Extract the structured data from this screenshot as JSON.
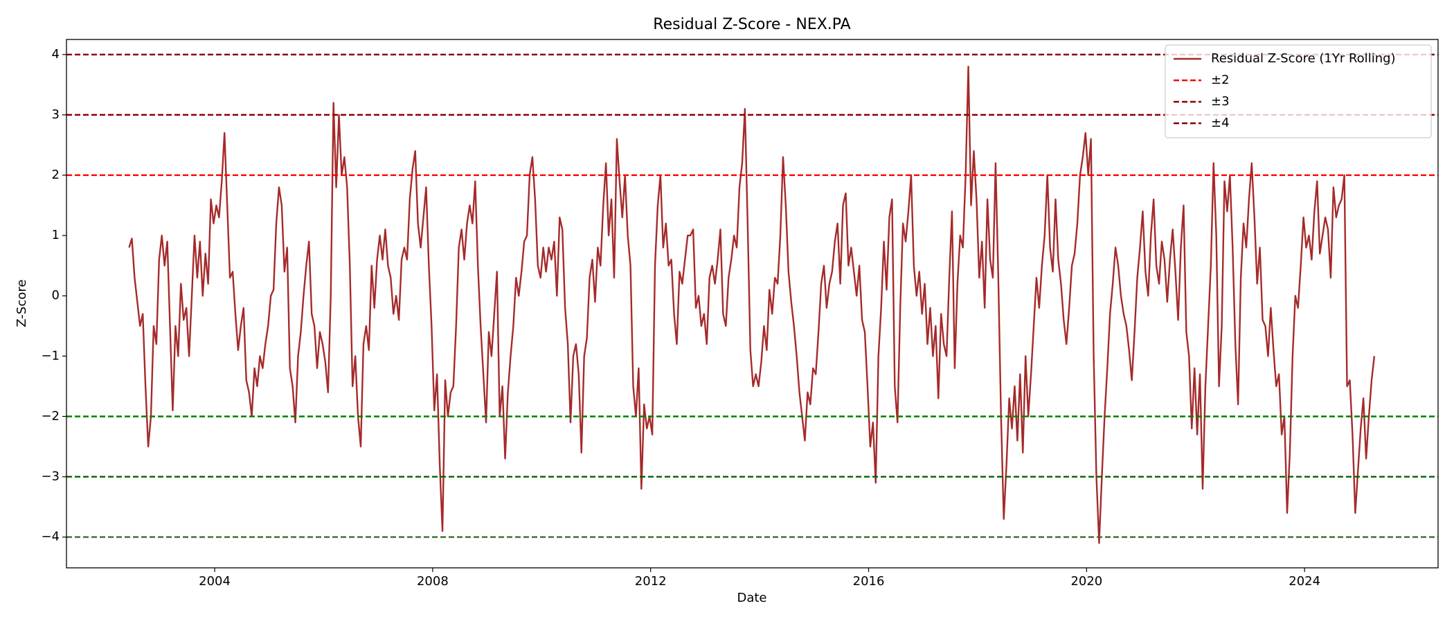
{
  "chart_data": {
    "type": "line",
    "title": "Residual Z-Score - NEX.PA",
    "xlabel": "Date",
    "ylabel": "Z-Score",
    "xlim": [
      2001.28,
      2026.45
    ],
    "ylim": [
      -4.51,
      4.25
    ],
    "xticks": [
      2004,
      2008,
      2012,
      2016,
      2020,
      2024
    ],
    "yticks": [
      {
        "value": -4,
        "label": "−4"
      },
      {
        "value": -3,
        "label": "−3"
      },
      {
        "value": -2,
        "label": "−2"
      },
      {
        "value": -1,
        "label": "−1"
      },
      0,
      1,
      2,
      3,
      4
    ],
    "legend": "upper right",
    "series": [
      {
        "name": "Residual Z-Score (1Yr Rolling)",
        "color": "#a52a2a",
        "x": [
          2002.43,
          2002.48,
          2002.53,
          2002.58,
          2002.63,
          2002.68,
          2002.73,
          2002.78,
          2002.83,
          2002.88,
          2002.93,
          2002.98,
          2003.03,
          2003.08,
          2003.13,
          2003.18,
          2003.23,
          2003.28,
          2003.33,
          2003.38,
          2003.43,
          2003.48,
          2003.53,
          2003.58,
          2003.63,
          2003.68,
          2003.73,
          2003.78,
          2003.83,
          2003.88,
          2003.93,
          2003.98,
          2004.03,
          2004.08,
          2004.13,
          2004.18,
          2004.23,
          2004.28,
          2004.33,
          2004.38,
          2004.43,
          2004.48,
          2004.53,
          2004.58,
          2004.63,
          2004.68,
          2004.73,
          2004.78,
          2004.83,
          2004.88,
          2004.93,
          2004.98,
          2005.03,
          2005.08,
          2005.13,
          2005.18,
          2005.23,
          2005.28,
          2005.33,
          2005.38,
          2005.43,
          2005.48,
          2005.53,
          2005.58,
          2005.63,
          2005.68,
          2005.73,
          2005.78,
          2005.83,
          2005.88,
          2005.93,
          2005.98,
          2006.03,
          2006.08,
          2006.13,
          2006.18,
          2006.23,
          2006.28,
          2006.33,
          2006.38,
          2006.43,
          2006.48,
          2006.53,
          2006.58,
          2006.63,
          2006.68,
          2006.73,
          2006.78,
          2006.83,
          2006.88,
          2006.93,
          2006.98,
          2007.03,
          2007.08,
          2007.13,
          2007.18,
          2007.23,
          2007.28,
          2007.33,
          2007.38,
          2007.43,
          2007.48,
          2007.53,
          2007.58,
          2007.63,
          2007.68,
          2007.73,
          2007.78,
          2007.83,
          2007.88,
          2007.93,
          2007.98,
          2008.03,
          2008.08,
          2008.13,
          2008.18,
          2008.23,
          2008.28,
          2008.33,
          2008.38,
          2008.43,
          2008.48,
          2008.53,
          2008.58,
          2008.63,
          2008.68,
          2008.73,
          2008.78,
          2008.83,
          2008.88,
          2008.93,
          2008.98,
          2009.03,
          2009.08,
          2009.13,
          2009.18,
          2009.23,
          2009.28,
          2009.33,
          2009.38,
          2009.43,
          2009.48,
          2009.53,
          2009.58,
          2009.63,
          2009.68,
          2009.73,
          2009.78,
          2009.83,
          2009.88,
          2009.93,
          2009.98,
          2010.03,
          2010.08,
          2010.13,
          2010.18,
          2010.23,
          2010.28,
          2010.33,
          2010.38,
          2010.43,
          2010.48,
          2010.53,
          2010.58,
          2010.63,
          2010.68,
          2010.73,
          2010.78,
          2010.83,
          2010.88,
          2010.93,
          2010.98,
          2011.03,
          2011.08,
          2011.13,
          2011.18,
          2011.23,
          2011.28,
          2011.33,
          2011.38,
          2011.43,
          2011.48,
          2011.53,
          2011.58,
          2011.63,
          2011.68,
          2011.73,
          2011.78,
          2011.83,
          2011.88,
          2011.93,
          2011.98,
          2012.03,
          2012.08,
          2012.13,
          2012.18,
          2012.23,
          2012.28,
          2012.33,
          2012.38,
          2012.43,
          2012.48,
          2012.53,
          2012.58,
          2012.63,
          2012.68,
          2012.73,
          2012.78,
          2012.83,
          2012.88,
          2012.93,
          2012.98,
          2013.03,
          2013.08,
          2013.13,
          2013.18,
          2013.23,
          2013.28,
          2013.33,
          2013.38,
          2013.43,
          2013.48,
          2013.53,
          2013.58,
          2013.63,
          2013.68,
          2013.73,
          2013.78,
          2013.83,
          2013.88,
          2013.93,
          2013.98,
          2014.03,
          2014.08,
          2014.13,
          2014.18,
          2014.23,
          2014.28,
          2014.33,
          2014.38,
          2014.43,
          2014.48,
          2014.53,
          2014.58,
          2014.63,
          2014.68,
          2014.73,
          2014.78,
          2014.83,
          2014.88,
          2014.93,
          2014.98,
          2015.03,
          2015.08,
          2015.13,
          2015.18,
          2015.23,
          2015.28,
          2015.33,
          2015.38,
          2015.43,
          2015.48,
          2015.53,
          2015.58,
          2015.63,
          2015.68,
          2015.73,
          2015.78,
          2015.83,
          2015.88,
          2015.93,
          2015.98,
          2016.03,
          2016.08,
          2016.13,
          2016.18,
          2016.23,
          2016.28,
          2016.33,
          2016.38,
          2016.43,
          2016.48,
          2016.53,
          2016.58,
          2016.63,
          2016.68,
          2016.73,
          2016.78,
          2016.83,
          2016.88,
          2016.93,
          2016.98,
          2017.03,
          2017.08,
          2017.13,
          2017.18,
          2017.23,
          2017.28,
          2017.33,
          2017.38,
          2017.43,
          2017.48,
          2017.53,
          2017.58,
          2017.63,
          2017.68,
          2017.73,
          2017.78,
          2017.83,
          2017.88,
          2017.93,
          2017.98,
          2018.03,
          2018.08,
          2018.13,
          2018.18,
          2018.23,
          2018.28,
          2018.33,
          2018.38,
          2018.43,
          2018.48,
          2018.53,
          2018.58,
          2018.63,
          2018.68,
          2018.73,
          2018.78,
          2018.83,
          2018.88,
          2018.93,
          2018.98,
          2019.03,
          2019.08,
          2019.13,
          2019.18,
          2019.23,
          2019.28,
          2019.33,
          2019.38,
          2019.43,
          2019.48,
          2019.53,
          2019.58,
          2019.63,
          2019.68,
          2019.73,
          2019.78,
          2019.83,
          2019.88,
          2019.93,
          2019.98,
          2020.03,
          2020.08,
          2020.13,
          2020.18,
          2020.23,
          2020.28,
          2020.33,
          2020.38,
          2020.43,
          2020.48,
          2020.53,
          2020.58,
          2020.63,
          2020.68,
          2020.73,
          2020.78,
          2020.83,
          2020.88,
          2020.93,
          2020.98,
          2021.03,
          2021.08,
          2021.13,
          2021.18,
          2021.23,
          2021.28,
          2021.33,
          2021.38,
          2021.43,
          2021.48,
          2021.53,
          2021.58,
          2021.63,
          2021.68,
          2021.73,
          2021.78,
          2021.83,
          2021.88,
          2021.93,
          2021.98,
          2022.03,
          2022.08,
          2022.13,
          2022.18,
          2022.23,
          2022.28,
          2022.33,
          2022.38,
          2022.43,
          2022.48,
          2022.53,
          2022.58,
          2022.63,
          2022.68,
          2022.73,
          2022.78,
          2022.83,
          2022.88,
          2022.93,
          2022.98,
          2023.03,
          2023.08,
          2023.13,
          2023.18,
          2023.23,
          2023.28,
          2023.33,
          2023.38,
          2023.43,
          2023.48,
          2023.53,
          2023.58,
          2023.63,
          2023.68,
          2023.73,
          2023.78,
          2023.83,
          2023.88,
          2023.93,
          2023.98,
          2024.03,
          2024.08,
          2024.13,
          2024.18,
          2024.23,
          2024.28,
          2024.33,
          2024.38,
          2024.43,
          2024.48,
          2024.53,
          2024.58,
          2024.63,
          2024.68,
          2024.73,
          2024.78,
          2024.83,
          2024.88,
          2024.93,
          2024.98,
          2025.03,
          2025.08,
          2025.13,
          2025.18,
          2025.23,
          2025.28
        ],
        "values": [
          0.8,
          0.95,
          0.3,
          -0.1,
          -0.5,
          -0.3,
          -1.5,
          -2.5,
          -2.0,
          -0.5,
          -0.8,
          0.6,
          1.0,
          0.5,
          0.9,
          -0.5,
          -1.9,
          -0.5,
          -1.0,
          0.2,
          -0.4,
          -0.2,
          -1.0,
          0.0,
          1.0,
          0.3,
          0.9,
          0.0,
          0.7,
          0.2,
          1.6,
          1.2,
          1.5,
          1.3,
          1.9,
          2.7,
          1.5,
          0.3,
          0.4,
          -0.3,
          -0.9,
          -0.5,
          -0.2,
          -1.4,
          -1.6,
          -2.0,
          -1.2,
          -1.5,
          -1.0,
          -1.2,
          -0.8,
          -0.5,
          0.0,
          0.1,
          1.2,
          1.8,
          1.5,
          0.4,
          0.8,
          -1.2,
          -1.5,
          -2.1,
          -1.0,
          -0.6,
          0.0,
          0.5,
          0.9,
          -0.3,
          -0.5,
          -1.2,
          -0.6,
          -0.8,
          -1.1,
          -1.6,
          0.0,
          3.2,
          1.8,
          3.0,
          2.0,
          2.3,
          1.8,
          0.5,
          -1.5,
          -1.0,
          -2.0,
          -2.5,
          -0.8,
          -0.5,
          -0.9,
          0.5,
          -0.2,
          0.6,
          1.0,
          0.6,
          1.1,
          0.5,
          0.3,
          -0.3,
          0.0,
          -0.4,
          0.6,
          0.8,
          0.6,
          1.6,
          2.1,
          2.4,
          1.2,
          0.8,
          1.3,
          1.8,
          0.5,
          -0.5,
          -1.9,
          -1.3,
          -2.8,
          -3.9,
          -1.4,
          -2.0,
          -1.6,
          -1.5,
          -0.5,
          0.8,
          1.1,
          0.6,
          1.2,
          1.5,
          1.2,
          1.9,
          0.5,
          -0.5,
          -1.3,
          -2.1,
          -0.6,
          -1.0,
          -0.3,
          0.4,
          -2.0,
          -1.5,
          -2.7,
          -1.6,
          -1.0,
          -0.5,
          0.3,
          0.0,
          0.4,
          0.9,
          1.0,
          2.0,
          2.3,
          1.6,
          0.5,
          0.3,
          0.8,
          0.4,
          0.8,
          0.6,
          0.9,
          0.0,
          1.3,
          1.1,
          -0.2,
          -0.8,
          -2.1,
          -1.0,
          -0.8,
          -1.3,
          -2.6,
          -1.0,
          -0.7,
          0.3,
          0.6,
          -0.1,
          0.8,
          0.5,
          1.5,
          2.2,
          1.0,
          1.6,
          0.3,
          2.6,
          1.9,
          1.3,
          2.0,
          1.0,
          0.5,
          -1.5,
          -2.0,
          -1.2,
          -3.2,
          -1.8,
          -2.2,
          -2.0,
          -2.3,
          0.5,
          1.5,
          2.0,
          0.8,
          1.2,
          0.5,
          0.6,
          -0.3,
          -0.8,
          0.4,
          0.2,
          0.6,
          1.0,
          1.0,
          1.1,
          -0.2,
          0.0,
          -0.5,
          -0.3,
          -0.8,
          0.3,
          0.5,
          0.2,
          0.6,
          1.1,
          -0.3,
          -0.5,
          0.3,
          0.6,
          1.0,
          0.8,
          1.8,
          2.2,
          3.1,
          1.2,
          -0.9,
          -1.5,
          -1.3,
          -1.5,
          -1.1,
          -0.5,
          -0.9,
          0.1,
          -0.3,
          0.3,
          0.2,
          1.0,
          2.3,
          1.5,
          0.4,
          -0.1,
          -0.5,
          -1.0,
          -1.6,
          -2.0,
          -2.4,
          -1.6,
          -1.8,
          -1.2,
          -1.3,
          -0.6,
          0.2,
          0.5,
          -0.2,
          0.2,
          0.4,
          0.9,
          1.2,
          0.2,
          1.5,
          1.7,
          0.5,
          0.8,
          0.4,
          0.0,
          0.5,
          -0.4,
          -0.6,
          -1.5,
          -2.5,
          -2.1,
          -3.1,
          -1.0,
          -0.2,
          0.9,
          0.1,
          1.3,
          1.6,
          -1.5,
          -2.1,
          -0.2,
          1.2,
          0.9,
          1.4,
          2.0,
          0.5,
          0.0,
          0.4,
          -0.3,
          0.2,
          -0.8,
          -0.2,
          -1.0,
          -0.5,
          -1.7,
          -0.3,
          -0.8,
          -1.0,
          0.3,
          1.4,
          -1.2,
          0.2,
          1.0,
          0.8,
          2.0,
          3.8,
          1.5,
          2.4,
          1.6,
          0.3,
          0.9,
          -0.2,
          1.6,
          0.6,
          0.3,
          2.2,
          0.3,
          -2.0,
          -3.7,
          -2.8,
          -1.7,
          -2.2,
          -1.5,
          -2.4,
          -1.3,
          -2.6,
          -1.0,
          -2.0,
          -1.3,
          -0.5,
          0.3,
          -0.2,
          0.5,
          1.0,
          2.0,
          0.8,
          0.4,
          1.6,
          0.6,
          0.2,
          -0.4,
          -0.8,
          -0.2,
          0.5,
          0.7,
          1.2,
          2.0,
          2.3,
          2.7,
          2.0,
          2.6,
          -1.0,
          -3.0,
          -4.1,
          -3.0,
          -2.0,
          -1.2,
          -0.3,
          0.2,
          0.8,
          0.5,
          0.0,
          -0.3,
          -0.5,
          -0.9,
          -1.4,
          -0.6,
          0.3,
          0.8,
          1.4,
          0.4,
          0.0,
          1.0,
          1.6,
          0.5,
          0.2,
          0.9,
          0.6,
          -0.1,
          0.6,
          1.1,
          0.4,
          -0.4,
          0.8,
          1.5,
          -0.6,
          -1.0,
          -2.2,
          -1.2,
          -2.3,
          -1.3,
          -3.2,
          -1.5,
          -0.5,
          0.5,
          2.2,
          1.0,
          -1.5,
          -0.5,
          1.9,
          1.4,
          2.0,
          0.8,
          -0.8,
          -1.8,
          0.3,
          1.2,
          0.8,
          1.6,
          2.2,
          1.3,
          0.2,
          0.8,
          -0.4,
          -0.5,
          -1.0,
          -0.2,
          -0.9,
          -1.5,
          -1.3,
          -2.3,
          -2.0,
          -3.6,
          -2.6,
          -1.0,
          0.0,
          -0.2,
          0.5,
          1.3,
          0.8,
          1.0,
          0.6,
          1.4,
          1.9,
          0.7,
          1.0,
          1.3,
          1.1,
          0.3,
          1.8,
          1.3,
          1.5,
          1.6,
          2.0,
          -1.5,
          -1.4,
          -2.3,
          -3.6,
          -2.9,
          -2.2,
          -1.7,
          -2.7,
          -2.0,
          -1.4,
          -1.0
        ]
      }
    ],
    "hlines": [
      {
        "name": "±2",
        "values": [
          2,
          -2
        ],
        "colors": [
          "#ff0000",
          "#008000"
        ]
      },
      {
        "name": "±3",
        "values": [
          3,
          -3
        ],
        "colors": [
          "#8b0000",
          "#006400"
        ]
      },
      {
        "name": "±4",
        "values": [
          4,
          -4
        ],
        "colors": [
          "#800000",
          "#3b6e22"
        ]
      }
    ]
  }
}
